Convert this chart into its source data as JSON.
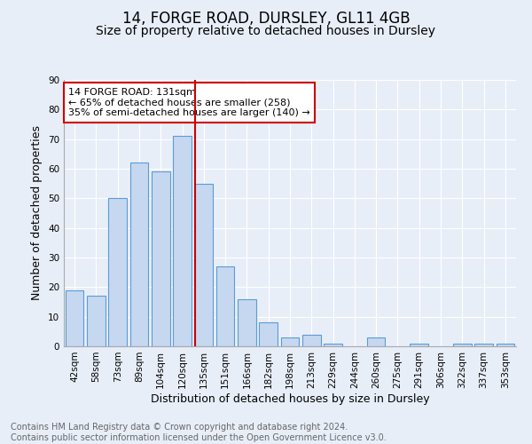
{
  "title": "14, FORGE ROAD, DURSLEY, GL11 4GB",
  "subtitle": "Size of property relative to detached houses in Dursley",
  "xlabel": "Distribution of detached houses by size in Dursley",
  "ylabel": "Number of detached properties",
  "categories": [
    "42sqm",
    "58sqm",
    "73sqm",
    "89sqm",
    "104sqm",
    "120sqm",
    "135sqm",
    "151sqm",
    "166sqm",
    "182sqm",
    "198sqm",
    "213sqm",
    "229sqm",
    "244sqm",
    "260sqm",
    "275sqm",
    "291sqm",
    "306sqm",
    "322sqm",
    "337sqm",
    "353sqm"
  ],
  "values": [
    19,
    17,
    50,
    62,
    59,
    71,
    55,
    27,
    16,
    8,
    3,
    4,
    1,
    0,
    3,
    0,
    1,
    0,
    1,
    1,
    1
  ],
  "bar_color": "#c5d8f0",
  "bar_edge_color": "#5b9bd5",
  "vline_x_index": 6,
  "marker_label": "14 FORGE ROAD: 131sqm",
  "annotation_line1": "← 65% of detached houses are smaller (258)",
  "annotation_line2": "35% of semi-detached houses are larger (140) →",
  "annotation_box_color": "#ffffff",
  "annotation_box_edge": "#cc0000",
  "annotation_text_color": "#000000",
  "vline_color": "#cc0000",
  "ylim": [
    0,
    90
  ],
  "yticks": [
    0,
    10,
    20,
    30,
    40,
    50,
    60,
    70,
    80,
    90
  ],
  "background_color": "#e8eef8",
  "grid_color": "#ffffff",
  "footnote": "Contains HM Land Registry data © Crown copyright and database right 2024.\nContains public sector information licensed under the Open Government Licence v3.0.",
  "title_fontsize": 12,
  "subtitle_fontsize": 10,
  "xlabel_fontsize": 9,
  "ylabel_fontsize": 9,
  "tick_fontsize": 7.5,
  "footnote_fontsize": 7,
  "annotation_fontsize": 8
}
